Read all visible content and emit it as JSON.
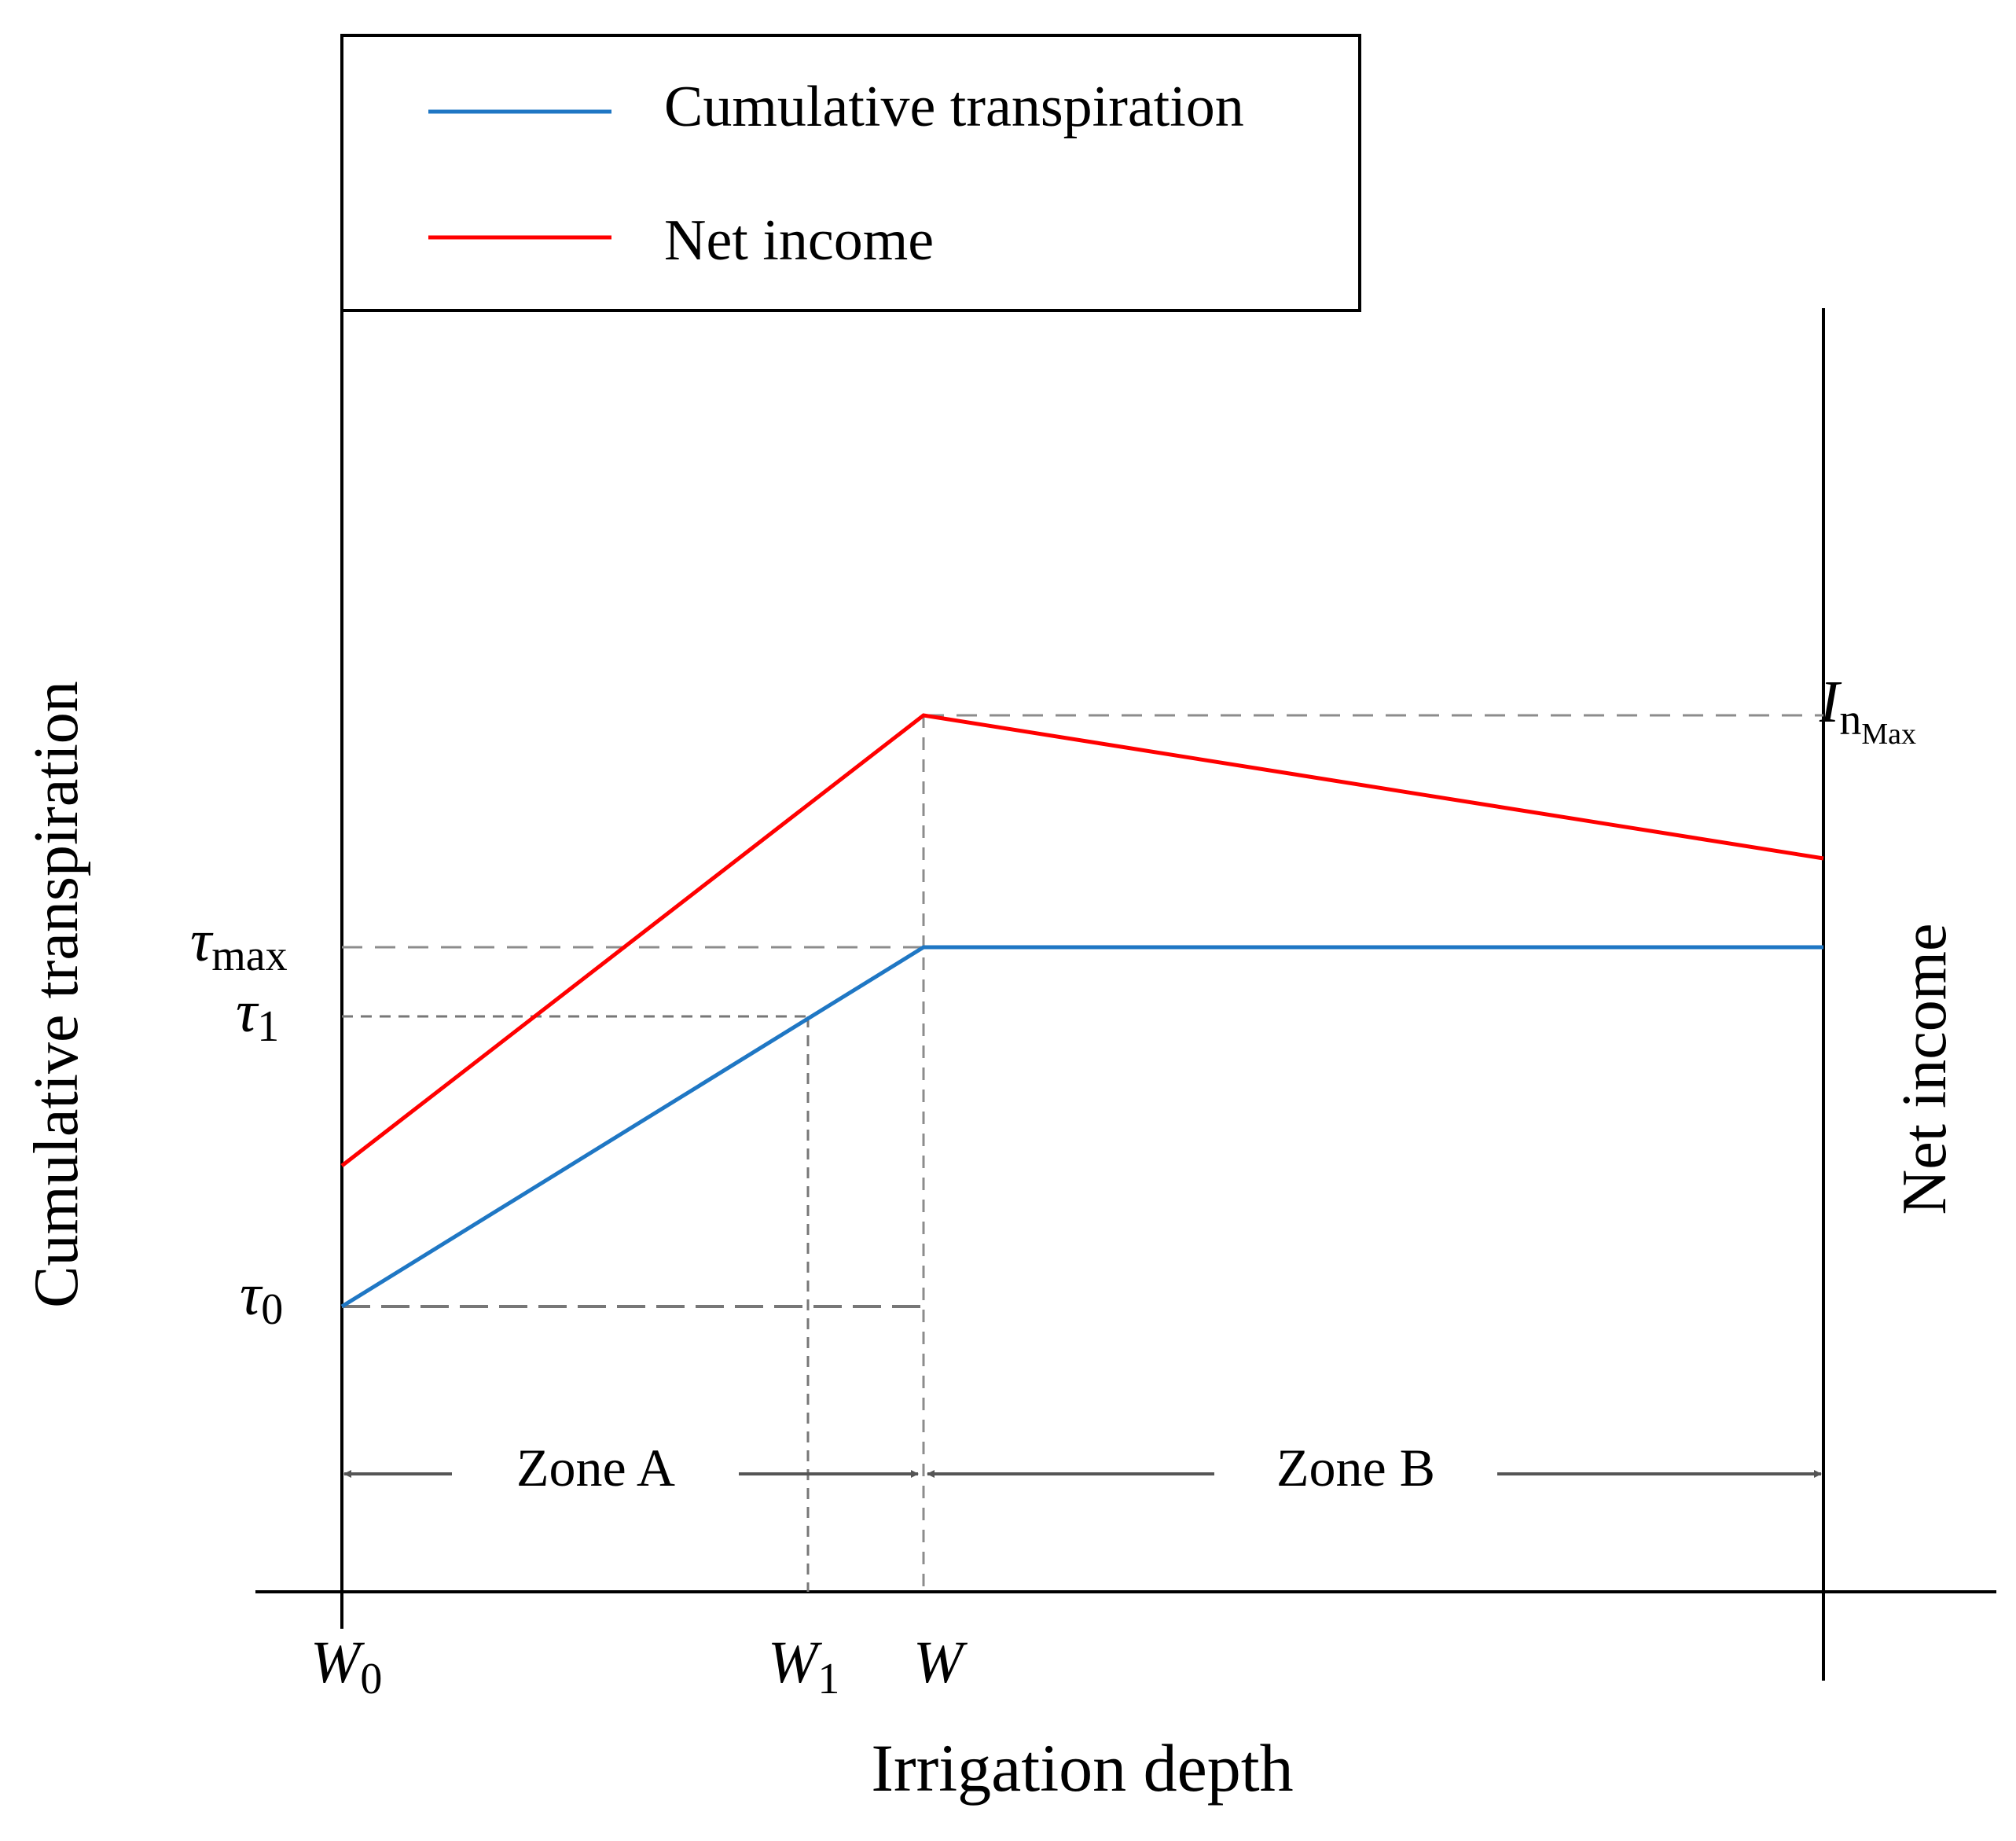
{
  "legend": {
    "items": [
      {
        "label": "Cumulative transpiration",
        "color": "#1f77c4"
      },
      {
        "label": "Net income",
        "color": "#ff0000"
      }
    ]
  },
  "axes": {
    "x_title": "Irrigation depth",
    "y_left_title": "Cumulative transpiration",
    "y_right_title": "Net income"
  },
  "x_ticks": {
    "w0": {
      "base": "W",
      "sub": "0"
    },
    "w1": {
      "base": "W",
      "sub": "1"
    },
    "w": {
      "base": "W"
    }
  },
  "y_ticks": {
    "tau_max": {
      "base": "τ",
      "sub": "max"
    },
    "tau_1": {
      "base": "τ",
      "sub": "1"
    },
    "tau_0": {
      "base": "τ",
      "sub": "0"
    }
  },
  "right_tick": {
    "base": "I",
    "sub": "n",
    "subsub": "Max"
  },
  "zones": {
    "a": "Zone A",
    "b": "Zone B"
  },
  "colors": {
    "transpiration": "#1f77c4",
    "net_income": "#ff0000",
    "guide": "#8c8c8c",
    "arrow": "#555555",
    "axis": "#000000"
  }
}
